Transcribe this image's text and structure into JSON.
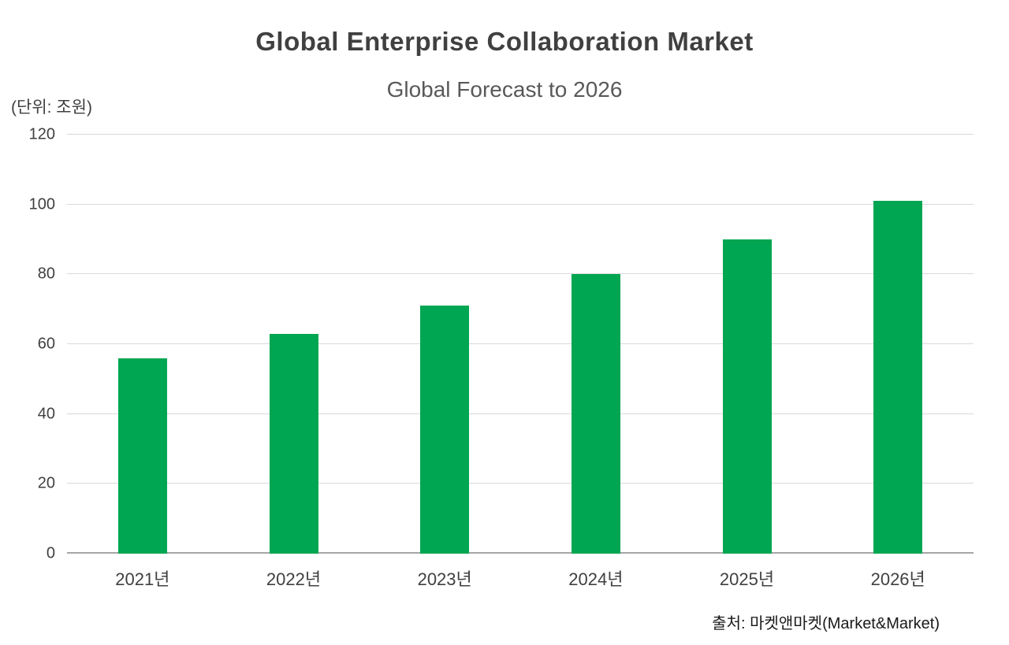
{
  "header": {
    "title": "Global Enterprise Collaboration Market",
    "subtitle": "Global Forecast to 2026",
    "unit_label": "(단위: 조원)"
  },
  "footer": {
    "source": "출처: 마켓앤마켓(Market&Market)"
  },
  "chart_data": {
    "type": "bar",
    "title": "Global Enterprise Collaboration Market",
    "subtitle": "Global Forecast to 2026",
    "unit_label": "(단위: 조원)",
    "categories": [
      "2021년",
      "2022년",
      "2023년",
      "2024년",
      "2025년",
      "2026년"
    ],
    "values": [
      56,
      63,
      71,
      80,
      90,
      101
    ],
    "xlabel": "",
    "ylabel": "(단위: 조원)",
    "ylim": [
      0,
      120
    ],
    "yticks": [
      0,
      20,
      40,
      60,
      80,
      100,
      120
    ],
    "grid": true,
    "legend": false,
    "bar_color": "#00a651",
    "gridline_color": "#d9d9d9",
    "axis_color": "#a6a6a6",
    "text_color": "#404040",
    "source": "출처: 마켓앤마켓(Market&Market)"
  }
}
